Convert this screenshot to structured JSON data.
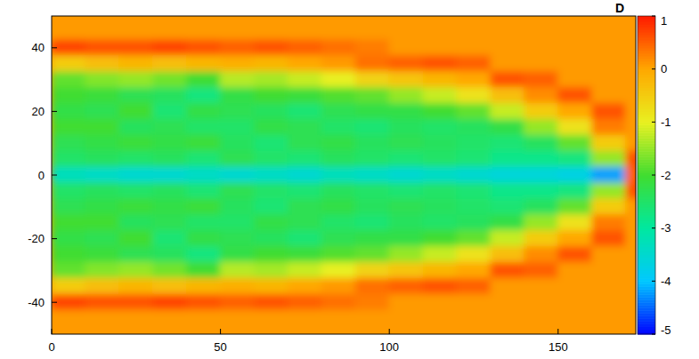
{
  "chart_data": {
    "type": "heatmap",
    "title": "D",
    "xlim": [
      0,
      173
    ],
    "ylim": [
      -50,
      50
    ],
    "xticks": [
      0,
      50,
      100,
      150
    ],
    "yticks": [
      -40,
      -20,
      0,
      20,
      40
    ],
    "colorbar_lim": [
      -5,
      1
    ],
    "colorbar_ticks": [
      -5,
      -4,
      -3,
      -2,
      -1,
      0,
      1
    ],
    "x": [
      5,
      15,
      25,
      35,
      45,
      55,
      65,
      75,
      85,
      95,
      105,
      115,
      125,
      135,
      145,
      155,
      165,
      175
    ],
    "y": [
      50,
      45,
      40,
      35,
      30,
      25,
      20,
      15,
      10,
      5,
      0,
      -5,
      -10,
      -15,
      -20,
      -25,
      -30,
      -35,
      -40,
      -45,
      -50
    ],
    "values": [
      [
        0.1,
        0.1,
        0.1,
        0.1,
        0.1,
        0.1,
        0.1,
        0.1,
        0.1,
        0.1,
        0.1,
        0.1,
        0.1,
        0.1,
        0.1,
        0.1,
        0.1,
        0.1
      ],
      [
        0.1,
        0.1,
        0.1,
        0.1,
        0.1,
        0.1,
        0.1,
        0.1,
        0.1,
        0.1,
        0.1,
        0.1,
        0.1,
        0.1,
        0.1,
        0.1,
        0.1,
        0.1
      ],
      [
        0.7,
        0.6,
        0.6,
        0.7,
        0.6,
        0.5,
        0.6,
        0.5,
        0.4,
        0.3,
        0.1,
        0.1,
        0.1,
        0.1,
        0.1,
        0.1,
        0.1,
        0.1
      ],
      [
        -0.5,
        -0.3,
        -0.2,
        -0.3,
        -0.2,
        -0.1,
        -0.2,
        0.0,
        0.1,
        0.4,
        0.5,
        0.6,
        0.5,
        0.1,
        0.1,
        0.1,
        0.1,
        0.1
      ],
      [
        -1.8,
        -1.6,
        -1.5,
        -1.7,
        -2.0,
        -1.3,
        -1.4,
        -1.2,
        -1.0,
        -0.6,
        -0.4,
        -0.2,
        0.0,
        0.6,
        0.5,
        0.1,
        0.1,
        0.1
      ],
      [
        -2.0,
        -2.1,
        -2.3,
        -2.4,
        -2.7,
        -2.2,
        -2.0,
        -2.1,
        -1.9,
        -1.8,
        -1.5,
        -1.2,
        -0.8,
        -0.3,
        0.2,
        0.6,
        0.1,
        0.1
      ],
      [
        -2.2,
        -2.3,
        -2.0,
        -2.6,
        -2.2,
        -2.3,
        -2.4,
        -2.6,
        -2.3,
        -2.2,
        -2.2,
        -2.0,
        -1.8,
        -1.2,
        -0.5,
        0.0,
        0.6,
        0.1
      ],
      [
        -2.0,
        -2.0,
        -2.4,
        -2.3,
        -2.5,
        -2.5,
        -2.2,
        -2.3,
        -2.5,
        -2.6,
        -2.4,
        -2.5,
        -2.4,
        -2.2,
        -1.5,
        -0.8,
        0.3,
        0.1
      ],
      [
        -2.3,
        -2.2,
        -2.1,
        -2.2,
        -2.1,
        -2.4,
        -2.6,
        -2.3,
        -2.2,
        -2.4,
        -2.3,
        -2.4,
        -2.5,
        -2.6,
        -2.4,
        -1.8,
        -0.5,
        0.1
      ],
      [
        -2.5,
        -2.4,
        -2.5,
        -2.4,
        -2.6,
        -2.3,
        -2.5,
        -2.6,
        -2.4,
        -2.5,
        -2.6,
        -2.5,
        -2.6,
        -2.8,
        -2.8,
        -2.7,
        -1.5,
        0.6
      ],
      [
        -3.3,
        -3.4,
        -3.5,
        -3.5,
        -3.4,
        -3.5,
        -3.4,
        -3.5,
        -3.3,
        -3.4,
        -3.5,
        -3.4,
        -3.5,
        -3.6,
        -3.6,
        -3.7,
        -4.2,
        0.5
      ],
      [
        -2.5,
        -2.4,
        -2.5,
        -2.4,
        -2.6,
        -2.3,
        -2.5,
        -2.6,
        -2.4,
        -2.5,
        -2.6,
        -2.5,
        -2.6,
        -2.8,
        -2.8,
        -2.7,
        -1.5,
        0.6
      ],
      [
        -2.3,
        -2.2,
        -2.1,
        -2.2,
        -2.1,
        -2.4,
        -2.6,
        -2.3,
        -2.2,
        -2.4,
        -2.3,
        -2.4,
        -2.5,
        -2.6,
        -2.4,
        -1.8,
        -0.5,
        0.1
      ],
      [
        -2.0,
        -2.0,
        -2.4,
        -2.3,
        -2.5,
        -2.5,
        -2.2,
        -2.3,
        -2.5,
        -2.6,
        -2.4,
        -2.5,
        -2.4,
        -2.2,
        -1.5,
        -0.8,
        0.3,
        0.1
      ],
      [
        -2.2,
        -2.3,
        -2.0,
        -2.6,
        -2.2,
        -2.3,
        -2.4,
        -2.6,
        -2.3,
        -2.2,
        -2.2,
        -2.0,
        -1.8,
        -1.2,
        -0.5,
        0.0,
        0.6,
        0.1
      ],
      [
        -2.0,
        -2.1,
        -2.3,
        -2.4,
        -2.7,
        -2.2,
        -2.0,
        -2.1,
        -1.9,
        -1.8,
        -1.5,
        -1.2,
        -0.8,
        -0.3,
        0.2,
        0.6,
        0.1,
        0.1
      ],
      [
        -1.8,
        -1.6,
        -1.5,
        -1.7,
        -2.0,
        -1.3,
        -1.4,
        -1.2,
        -1.0,
        -0.6,
        -0.4,
        -0.2,
        0.0,
        0.6,
        0.5,
        0.1,
        0.1,
        0.1
      ],
      [
        -0.5,
        -0.3,
        -0.2,
        -0.3,
        -0.2,
        -0.1,
        -0.2,
        0.0,
        0.1,
        0.4,
        0.5,
        0.6,
        0.5,
        0.1,
        0.1,
        0.1,
        0.1,
        0.1
      ],
      [
        0.7,
        0.6,
        0.6,
        0.7,
        0.6,
        0.5,
        0.6,
        0.5,
        0.4,
        0.3,
        0.1,
        0.1,
        0.1,
        0.1,
        0.1,
        0.1,
        0.1,
        0.1
      ],
      [
        0.1,
        0.1,
        0.1,
        0.1,
        0.1,
        0.1,
        0.1,
        0.1,
        0.1,
        0.1,
        0.1,
        0.1,
        0.1,
        0.1,
        0.1,
        0.1,
        0.1,
        0.1
      ],
      [
        0.1,
        0.1,
        0.1,
        0.1,
        0.1,
        0.1,
        0.1,
        0.1,
        0.1,
        0.1,
        0.1,
        0.1,
        0.1,
        0.1,
        0.1,
        0.1,
        0.1,
        0.1
      ]
    ]
  }
}
